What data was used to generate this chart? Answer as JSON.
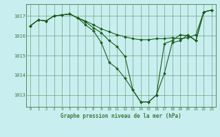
{
  "background_color": "#c8eef0",
  "grid_color": "#3d7a3d",
  "line_color": "#1a5c1a",
  "marker": "D",
  "marker_size": 2.0,
  "ylim": [
    1012.4,
    1017.6
  ],
  "yticks": [
    1013,
    1014,
    1015,
    1016,
    1017
  ],
  "xticks": [
    0,
    1,
    2,
    3,
    4,
    5,
    6,
    7,
    8,
    9,
    10,
    11,
    12,
    13,
    14,
    15,
    16,
    17,
    18,
    19,
    20,
    21,
    22,
    23
  ],
  "xlabel": "Graphe pression niveau de la mer (hPa)",
  "line1": [
    1016.5,
    1016.8,
    1016.75,
    1017.0,
    1017.05,
    1017.1,
    1016.9,
    1016.75,
    1016.55,
    1016.35,
    1016.2,
    1016.05,
    1015.95,
    1015.85,
    1015.8,
    1015.8,
    1015.85,
    1015.85,
    1015.9,
    1015.85,
    1015.9,
    1016.05,
    1017.2,
    1017.3
  ],
  "line2": [
    1016.5,
    1016.8,
    1016.75,
    1017.0,
    1017.05,
    1017.1,
    1016.9,
    1016.7,
    1016.4,
    1016.15,
    1015.75,
    1015.45,
    1014.95,
    1013.25,
    1012.65,
    1012.65,
    1013.0,
    1014.1,
    1015.65,
    1015.75,
    1016.05,
    1015.75,
    1017.2,
    1017.3
  ],
  "line3": [
    1016.5,
    1016.8,
    1016.75,
    1017.0,
    1017.05,
    1017.1,
    1016.9,
    1016.55,
    1016.25,
    1015.65,
    1014.65,
    1014.35,
    1013.85,
    1013.25,
    1012.65,
    1012.65,
    1013.0,
    1015.6,
    1015.75,
    1016.05,
    1016.0,
    1015.75,
    1017.2,
    1017.3
  ]
}
